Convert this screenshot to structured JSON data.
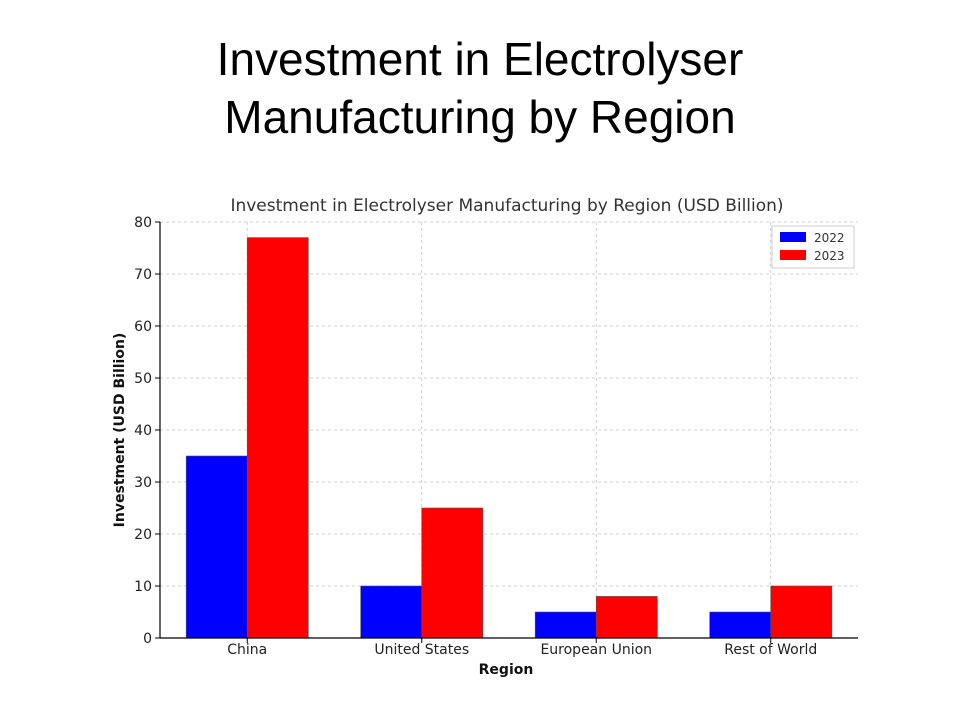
{
  "slide": {
    "title_line1": "Investment in Electrolyser",
    "title_line2": "Manufacturing by Region"
  },
  "chart_data": {
    "type": "bar",
    "title": "Investment in Electrolyser Manufacturing by Region (USD Billion)",
    "xlabel": "Region",
    "ylabel": "Investment (USD Billion)",
    "categories": [
      "China",
      "United States",
      "European Union",
      "Rest of World"
    ],
    "series": [
      {
        "name": "2022",
        "values": [
          35,
          10,
          5,
          5
        ],
        "color": "#0000ff"
      },
      {
        "name": "2023",
        "values": [
          77,
          25,
          8,
          10
        ],
        "color": "#ff0000"
      }
    ],
    "ylim": [
      0,
      80
    ],
    "yticks": [
      0,
      10,
      20,
      30,
      40,
      50,
      60,
      70,
      80
    ],
    "grid": true,
    "legend_position": "top-right"
  }
}
